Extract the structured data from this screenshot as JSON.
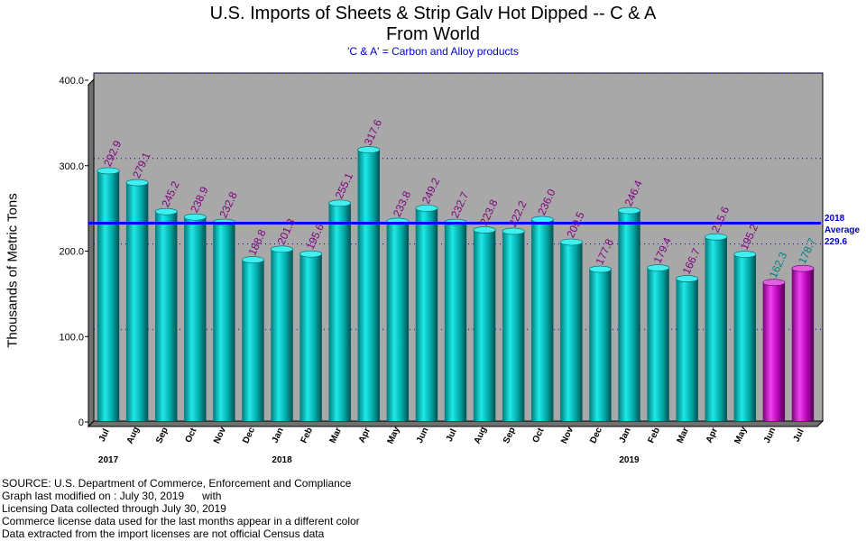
{
  "header": {
    "title_line1": "U.S. Imports of Sheets & Strip Galv Hot Dipped -- C & A",
    "title_line2": "From World",
    "subtitle": "'C & A' = Carbon and Alloy products"
  },
  "average": {
    "year_label": "2018",
    "label": "Average",
    "value_text": "229.6"
  },
  "source_lines": [
    "SOURCE: U.S. Department of Commerce, Enforcement and Compliance",
    "Graph last modified on : July 30, 2019      with",
    "Licensing Data collected through July 30, 2019",
    "Commerce license data used for the last months appear in a different color",
    "Data extracted from the import licenses are not official Census data"
  ],
  "chart_data": {
    "type": "bar",
    "title": "U.S. Imports of Sheets & Strip Galv Hot Dipped -- C & A",
    "subtitle": "From World",
    "ylabel": "Thousands of Metric Tons",
    "ylim": [
      0,
      400
    ],
    "yticks": [
      "0",
      "100.0",
      "200.0",
      "300.0",
      "400.0"
    ],
    "ytick_values": [
      0,
      100,
      200,
      300,
      400
    ],
    "categories": [
      "Jul",
      "Aug",
      "Sep",
      "Oct",
      "Nov",
      "Dec",
      "Jan",
      "Feb",
      "Mar",
      "Apr",
      "May",
      "Jun",
      "Jul",
      "Aug",
      "Sep",
      "Oct",
      "Nov",
      "Dec",
      "Jan",
      "Feb",
      "Mar",
      "Apr",
      "May",
      "Jun",
      "Jul"
    ],
    "values": [
      292.9,
      279.1,
      245.2,
      238.9,
      232.8,
      188.8,
      201.3,
      195.6,
      255.1,
      317.6,
      233.8,
      249.2,
      232.7,
      223.8,
      222.2,
      236.0,
      209.5,
      177.8,
      246.4,
      179.4,
      166.7,
      215.6,
      195.2,
      162.3,
      178.7
    ],
    "value_labels": [
      "292.9",
      "279.1",
      "245.2",
      "238.9",
      "232.8",
      "188.8",
      "201.3",
      "195.6",
      "255.1",
      "317.6",
      "233.8",
      "249.2",
      "232.7",
      "223.8",
      "222.2",
      "236.0",
      "209.5",
      "177.8",
      "246.4",
      "179.4",
      "166.7",
      "215.6",
      "195.2",
      "162.3",
      "178.7"
    ],
    "license_data_months": [
      23,
      24
    ],
    "year_labels": [
      {
        "label": "2017",
        "category_index": 0
      },
      {
        "label": "2018",
        "category_index": 6
      },
      {
        "label": "2019",
        "category_index": 18
      }
    ],
    "average_line": 229.6,
    "grid": true,
    "colors": {
      "census_bar": "#00c8c8",
      "license_bar": "#cc00cc",
      "census_label": "#800080",
      "license_label": "#008080",
      "plot_background": "#a8a8a8",
      "average_line": "#0000ff",
      "gridline": "#0000aa"
    }
  }
}
